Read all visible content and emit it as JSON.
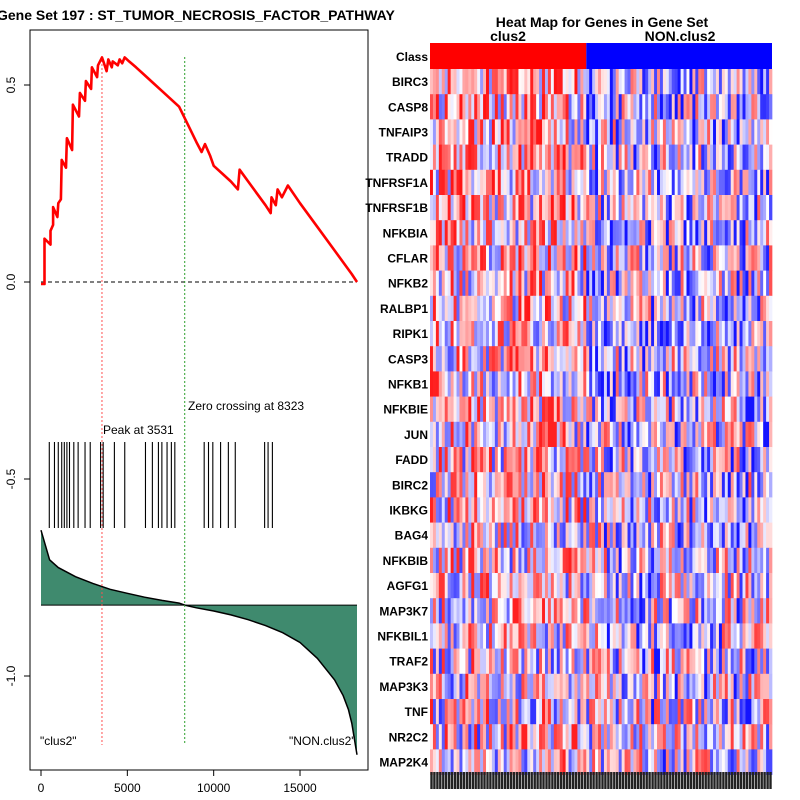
{
  "gsea_panel": {
    "title": "Gene Set  197 : ST_TUMOR_NECROSIS_FACTOR_PATHWAY",
    "peak_label": "Peak at 3531",
    "zero_label": "Zero crossing at 8323",
    "left_class_label": "\"clus2\"",
    "right_class_label": "\"NON.clus2\"",
    "colors": {
      "es_line": "#ff0000",
      "peak_line": "#ff5050",
      "zero_line": "#2ca02c",
      "ranked_fill": "#3f8a6e"
    }
  },
  "heatmap_panel": {
    "title": "Heat Map for Genes in Gene Set",
    "class_row_label": "Class",
    "class1_label": "clus2",
    "class2_label": "NON.clus2",
    "colors": {
      "class1": "#ff0000",
      "class2": "#0000ff"
    },
    "genes": [
      "BIRC3",
      "CASP8",
      "TNFAIP3",
      "TRADD",
      "TNFRSF1A",
      "TNFRSF1B",
      "NFKBIA",
      "CFLAR",
      "NFKB2",
      "RALBP1",
      "RIPK1",
      "CASP3",
      "NFKB1",
      "NFKBIE",
      "JUN",
      "FADD",
      "BIRC2",
      "IKBKG",
      "BAG4",
      "NFKBIB",
      "AGFG1",
      "MAP3K7",
      "NFKBIL1",
      "TRAF2",
      "MAP3K3",
      "TNF",
      "NR2C2",
      "MAP2K4"
    ],
    "sample_count": 116,
    "class1_count": 53
  },
  "chart_data": {
    "type": "line",
    "title": "Gene Set  197 : ST_TUMOR_NECROSIS_FACTOR_PATHWAY",
    "xlim": [
      0,
      18300
    ],
    "ylim": [
      -1.2,
      0.65
    ],
    "x_ticks": [
      0,
      5000,
      10000,
      15000
    ],
    "y_ticks": [
      0.5,
      0.0,
      -0.5,
      -1.0
    ],
    "x_tick_labels": [
      "0",
      "5000",
      "10000",
      "15000"
    ],
    "y_tick_labels": [
      "0.5",
      "0.0",
      "-0.5",
      "-1.0"
    ],
    "peak_x": 3531,
    "zero_crossing_x": 8323,
    "enrichment_score": {
      "x": [
        0,
        200,
        200,
        550,
        550,
        700,
        700,
        950,
        1000,
        1150,
        1200,
        1450,
        1500,
        1800,
        1850,
        2200,
        2250,
        2550,
        2600,
        2900,
        2950,
        3250,
        3300,
        3530,
        3650,
        3800,
        3900,
        4100,
        4150,
        4450,
        4550,
        4700,
        4850,
        5100,
        5500,
        6000,
        6500,
        7000,
        7500,
        8000,
        8500,
        9000,
        9300,
        9500,
        9800,
        10000,
        10500,
        11000,
        11400,
        11500,
        12000,
        12500,
        13000,
        13300,
        13350,
        13600,
        13700,
        13950,
        14300,
        15000,
        16000,
        17000,
        18000,
        18300
      ],
      "y": [
        -0.005,
        -0.005,
        0.11,
        0.095,
        0.13,
        0.145,
        0.19,
        0.165,
        0.2,
        0.21,
        0.31,
        0.29,
        0.365,
        0.335,
        0.45,
        0.42,
        0.48,
        0.46,
        0.51,
        0.49,
        0.545,
        0.52,
        0.55,
        0.57,
        0.555,
        0.535,
        0.565,
        0.545,
        0.56,
        0.55,
        0.565,
        0.555,
        0.57,
        0.56,
        0.545,
        0.525,
        0.505,
        0.485,
        0.465,
        0.445,
        0.4,
        0.355,
        0.33,
        0.35,
        0.32,
        0.295,
        0.275,
        0.255,
        0.235,
        0.285,
        0.255,
        0.225,
        0.195,
        0.175,
        0.215,
        0.195,
        0.235,
        0.215,
        0.245,
        0.2,
        0.14,
        0.08,
        0.02,
        0.0
      ]
    },
    "hit_positions": [
      480,
      780,
      1000,
      1200,
      1350,
      1500,
      1650,
      1900,
      2150,
      2550,
      2850,
      3450,
      3600,
      4250,
      4850,
      6050,
      6450,
      6800,
      7000,
      7300,
      7550,
      7750,
      9450,
      9700,
      9950,
      10400,
      10850,
      11250,
      12950,
      13150,
      13400
    ],
    "ranked_metric": {
      "baseline": -0.82,
      "x": [
        0,
        500,
        1000,
        2000,
        3000,
        4000,
        5000,
        6000,
        7000,
        8000,
        8323,
        9000,
        10000,
        11000,
        12000,
        13000,
        14000,
        15000,
        16000,
        17000,
        17500,
        17800,
        18000,
        18150,
        18300
      ],
      "y": [
        -0.63,
        -0.705,
        -0.725,
        -0.748,
        -0.765,
        -0.78,
        -0.79,
        -0.8,
        -0.808,
        -0.815,
        -0.82,
        -0.827,
        -0.835,
        -0.845,
        -0.857,
        -0.872,
        -0.89,
        -0.915,
        -0.955,
        -1.01,
        -1.05,
        -1.085,
        -1.12,
        -1.16,
        -1.2
      ]
    }
  }
}
